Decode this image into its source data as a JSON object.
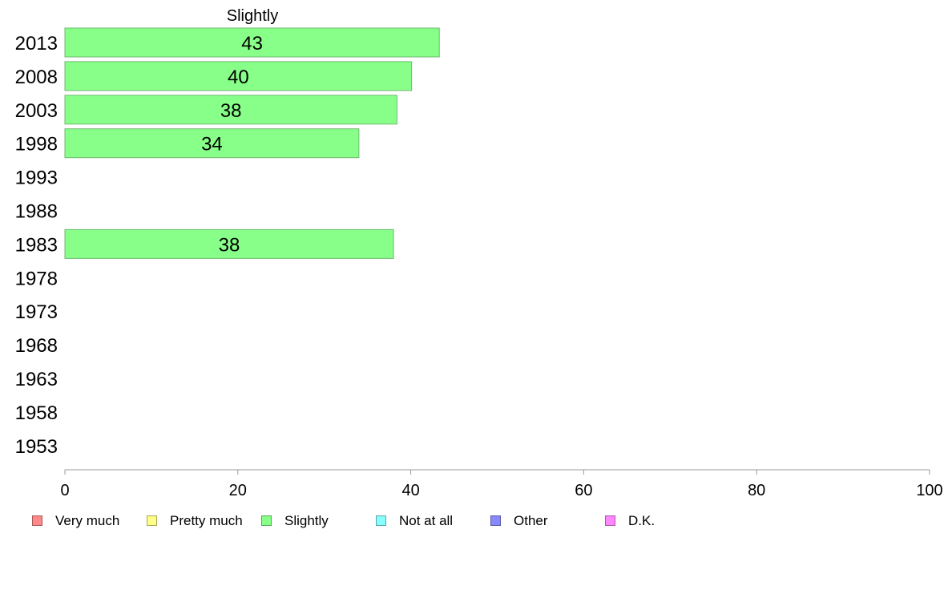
{
  "chart_data": {
    "type": "bar",
    "orientation": "horizontal",
    "title": "Slightly",
    "categories": [
      "2013",
      "2008",
      "2003",
      "1998",
      "1993",
      "1988",
      "1983",
      "1978",
      "1973",
      "1968",
      "1963",
      "1958",
      "1953"
    ],
    "series": [
      {
        "name": "Slightly",
        "values": [
          43.3,
          40.1,
          38.4,
          34.0,
          null,
          null,
          38.0,
          null,
          null,
          null,
          null,
          null,
          null
        ]
      }
    ],
    "data_labels": [
      "43",
      "40",
      "38",
      "34",
      "",
      "",
      "38",
      "",
      "",
      "",
      "",
      "",
      ""
    ],
    "xlim": [
      0,
      100
    ],
    "xticks": [
      0,
      20,
      40,
      60,
      80,
      100
    ],
    "bar_color": "#88ff88",
    "bar_edge_color": "#6fb86f",
    "axis_color": "#999999",
    "grid": false,
    "legend_position": "bottom",
    "legend": [
      {
        "label": "Very much",
        "color": "#ff8888"
      },
      {
        "label": "Pretty much",
        "color": "#ffff88"
      },
      {
        "label": "Slightly",
        "color": "#88ff88"
      },
      {
        "label": "Not at all",
        "color": "#88ffff"
      },
      {
        "label": "Other",
        "color": "#8888ff"
      },
      {
        "label": "D.K.",
        "color": "#ff88ff"
      }
    ]
  }
}
